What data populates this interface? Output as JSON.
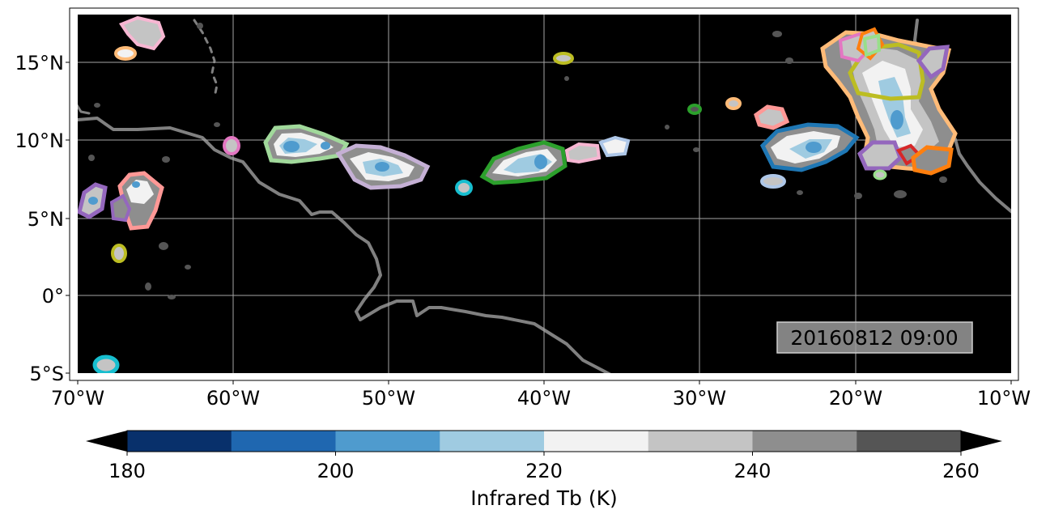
{
  "map": {
    "lon_ticks": [
      "70°W",
      "60°W",
      "50°W",
      "40°W",
      "30°W",
      "20°W",
      "10°W"
    ],
    "lat_ticks": [
      "15°N",
      "10°N",
      "5°N",
      "0°",
      "5°S"
    ],
    "timestamp": "20160812 09:00",
    "extent": {
      "lon": [
        -70,
        -10
      ],
      "lat": [
        -5,
        18
      ]
    },
    "gridlines": true,
    "background_color": "#000000",
    "coastline_color": "#808080"
  },
  "colorbar": {
    "label": "Infrared Tb (K)",
    "ticks": [
      "180",
      "200",
      "220",
      "240",
      "260"
    ],
    "bin_colors": [
      "#08306b",
      "#1f67b0",
      "#4f9bce",
      "#9fcbe1",
      "#f2f2f2",
      "#c4c4c4",
      "#8e8e8e",
      "#555555"
    ],
    "extend": "both"
  }
}
